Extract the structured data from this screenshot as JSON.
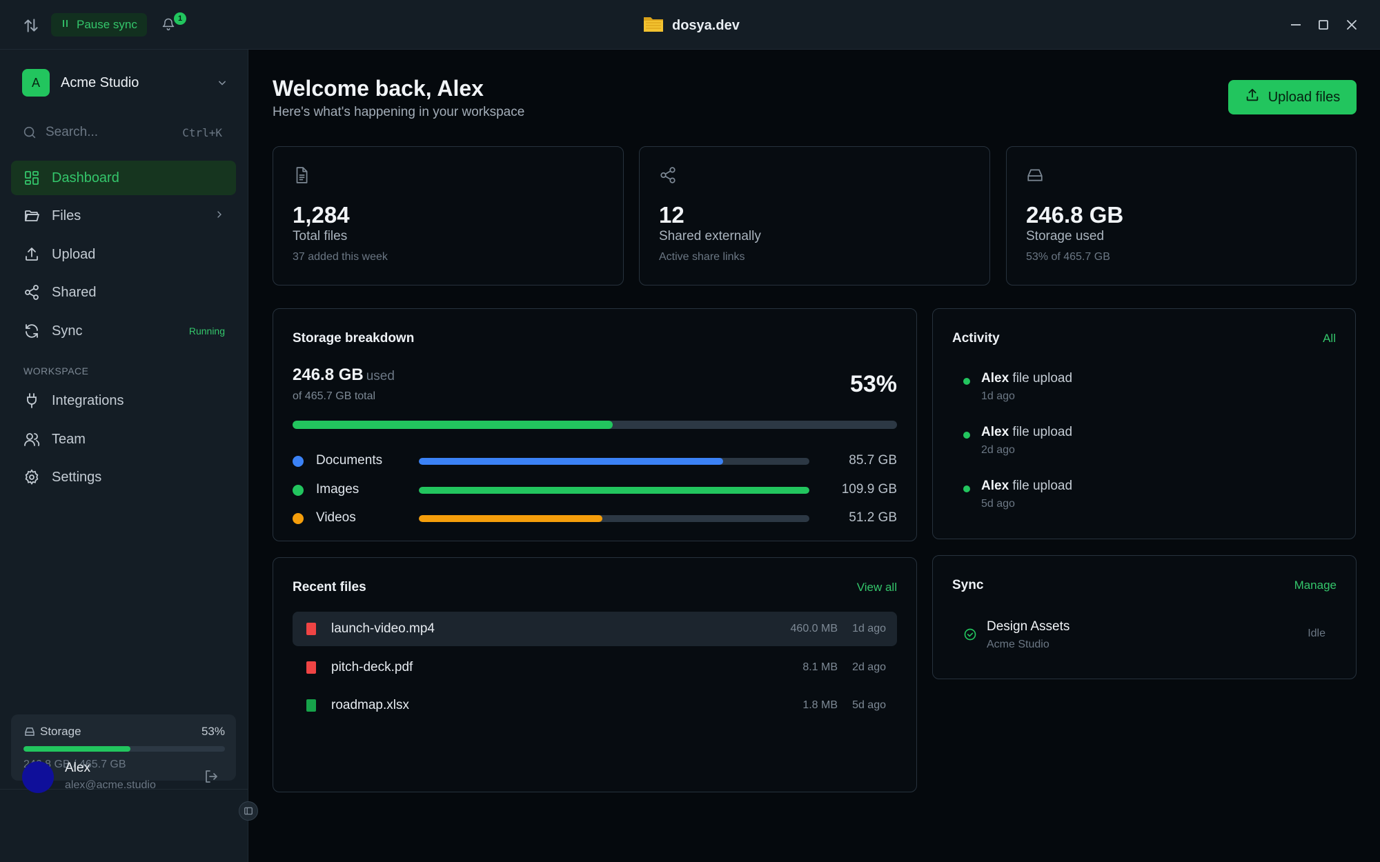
{
  "titlebar": {
    "pause_label": "Pause sync",
    "notification_count": "1",
    "app_title": "dosya.dev"
  },
  "sidebar": {
    "workspace_initial": "A",
    "workspace_name": "Acme Studio",
    "search_placeholder": "Search...",
    "search_shortcut": "Ctrl+K",
    "nav": [
      {
        "label": "Dashboard",
        "icon": "grid-icon",
        "active": true
      },
      {
        "label": "Files",
        "icon": "folder-icon"
      },
      {
        "label": "Upload",
        "icon": "upload-icon"
      },
      {
        "label": "Shared",
        "icon": "share-icon"
      },
      {
        "label": "Sync",
        "icon": "sync-icon",
        "badge": "Running"
      }
    ],
    "section_label": "WORKSPACE",
    "workspace_nav": [
      {
        "label": "Integrations",
        "icon": "plug-icon"
      },
      {
        "label": "Team",
        "icon": "users-icon"
      },
      {
        "label": "Settings",
        "icon": "gear-icon"
      }
    ],
    "storage": {
      "label": "Storage",
      "percent": "53%",
      "fill_fraction": 0.53,
      "text": "246.8 GB / 465.7 GB"
    },
    "user": {
      "name": "Alex",
      "email": "alex@acme.studio"
    }
  },
  "main": {
    "welcome": "Welcome back, Alex",
    "subtitle": "Here's what's happening in your workspace",
    "upload_button": "Upload files",
    "stats": [
      {
        "icon": "file-icon",
        "value": "1,284",
        "label": "Total files",
        "sub": "37 added this week"
      },
      {
        "icon": "share-icon",
        "value": "12",
        "label": "Shared externally",
        "sub": "Active share links"
      },
      {
        "icon": "drive-icon",
        "value": "246.8 GB",
        "label": "Storage used",
        "sub": "53% of 465.7 GB"
      }
    ],
    "storage_breakdown": {
      "title": "Storage breakdown",
      "used": "246.8 GB",
      "used_word": "used",
      "total": "of 465.7 GB total",
      "percent": "53%",
      "fill_fraction": 0.53,
      "categories": [
        {
          "name": "Documents",
          "size": "85.7 GB",
          "fraction": 0.78,
          "color": "#3b82f6"
        },
        {
          "name": "Images",
          "size": "109.9 GB",
          "fraction": 1.0,
          "color": "#22c55e"
        },
        {
          "name": "Videos",
          "size": "51.2 GB",
          "fraction": 0.47,
          "color": "#f59e0b"
        }
      ]
    },
    "recent_files": {
      "title": "Recent files",
      "view_all": "View all",
      "files": [
        {
          "name": "launch-video.mp4",
          "size": "460.0 MB",
          "time": "1d ago",
          "color": "#ef4444"
        },
        {
          "name": "pitch-deck.pdf",
          "size": "8.1 MB",
          "time": "2d ago",
          "color": "#ef4444"
        },
        {
          "name": "roadmap.xlsx",
          "size": "1.8 MB",
          "time": "5d ago",
          "color": "#16a34a"
        }
      ]
    },
    "activity": {
      "title": "Activity",
      "all_link": "All",
      "items": [
        {
          "user": "Alex",
          "action": "file upload",
          "time": "1d ago"
        },
        {
          "user": "Alex",
          "action": "file upload",
          "time": "2d ago"
        },
        {
          "user": "Alex",
          "action": "file upload",
          "time": "5d ago"
        }
      ]
    },
    "sync": {
      "title": "Sync",
      "manage": "Manage",
      "item_name": "Design Assets",
      "item_sub": "Acme Studio",
      "item_status": "Idle"
    }
  }
}
